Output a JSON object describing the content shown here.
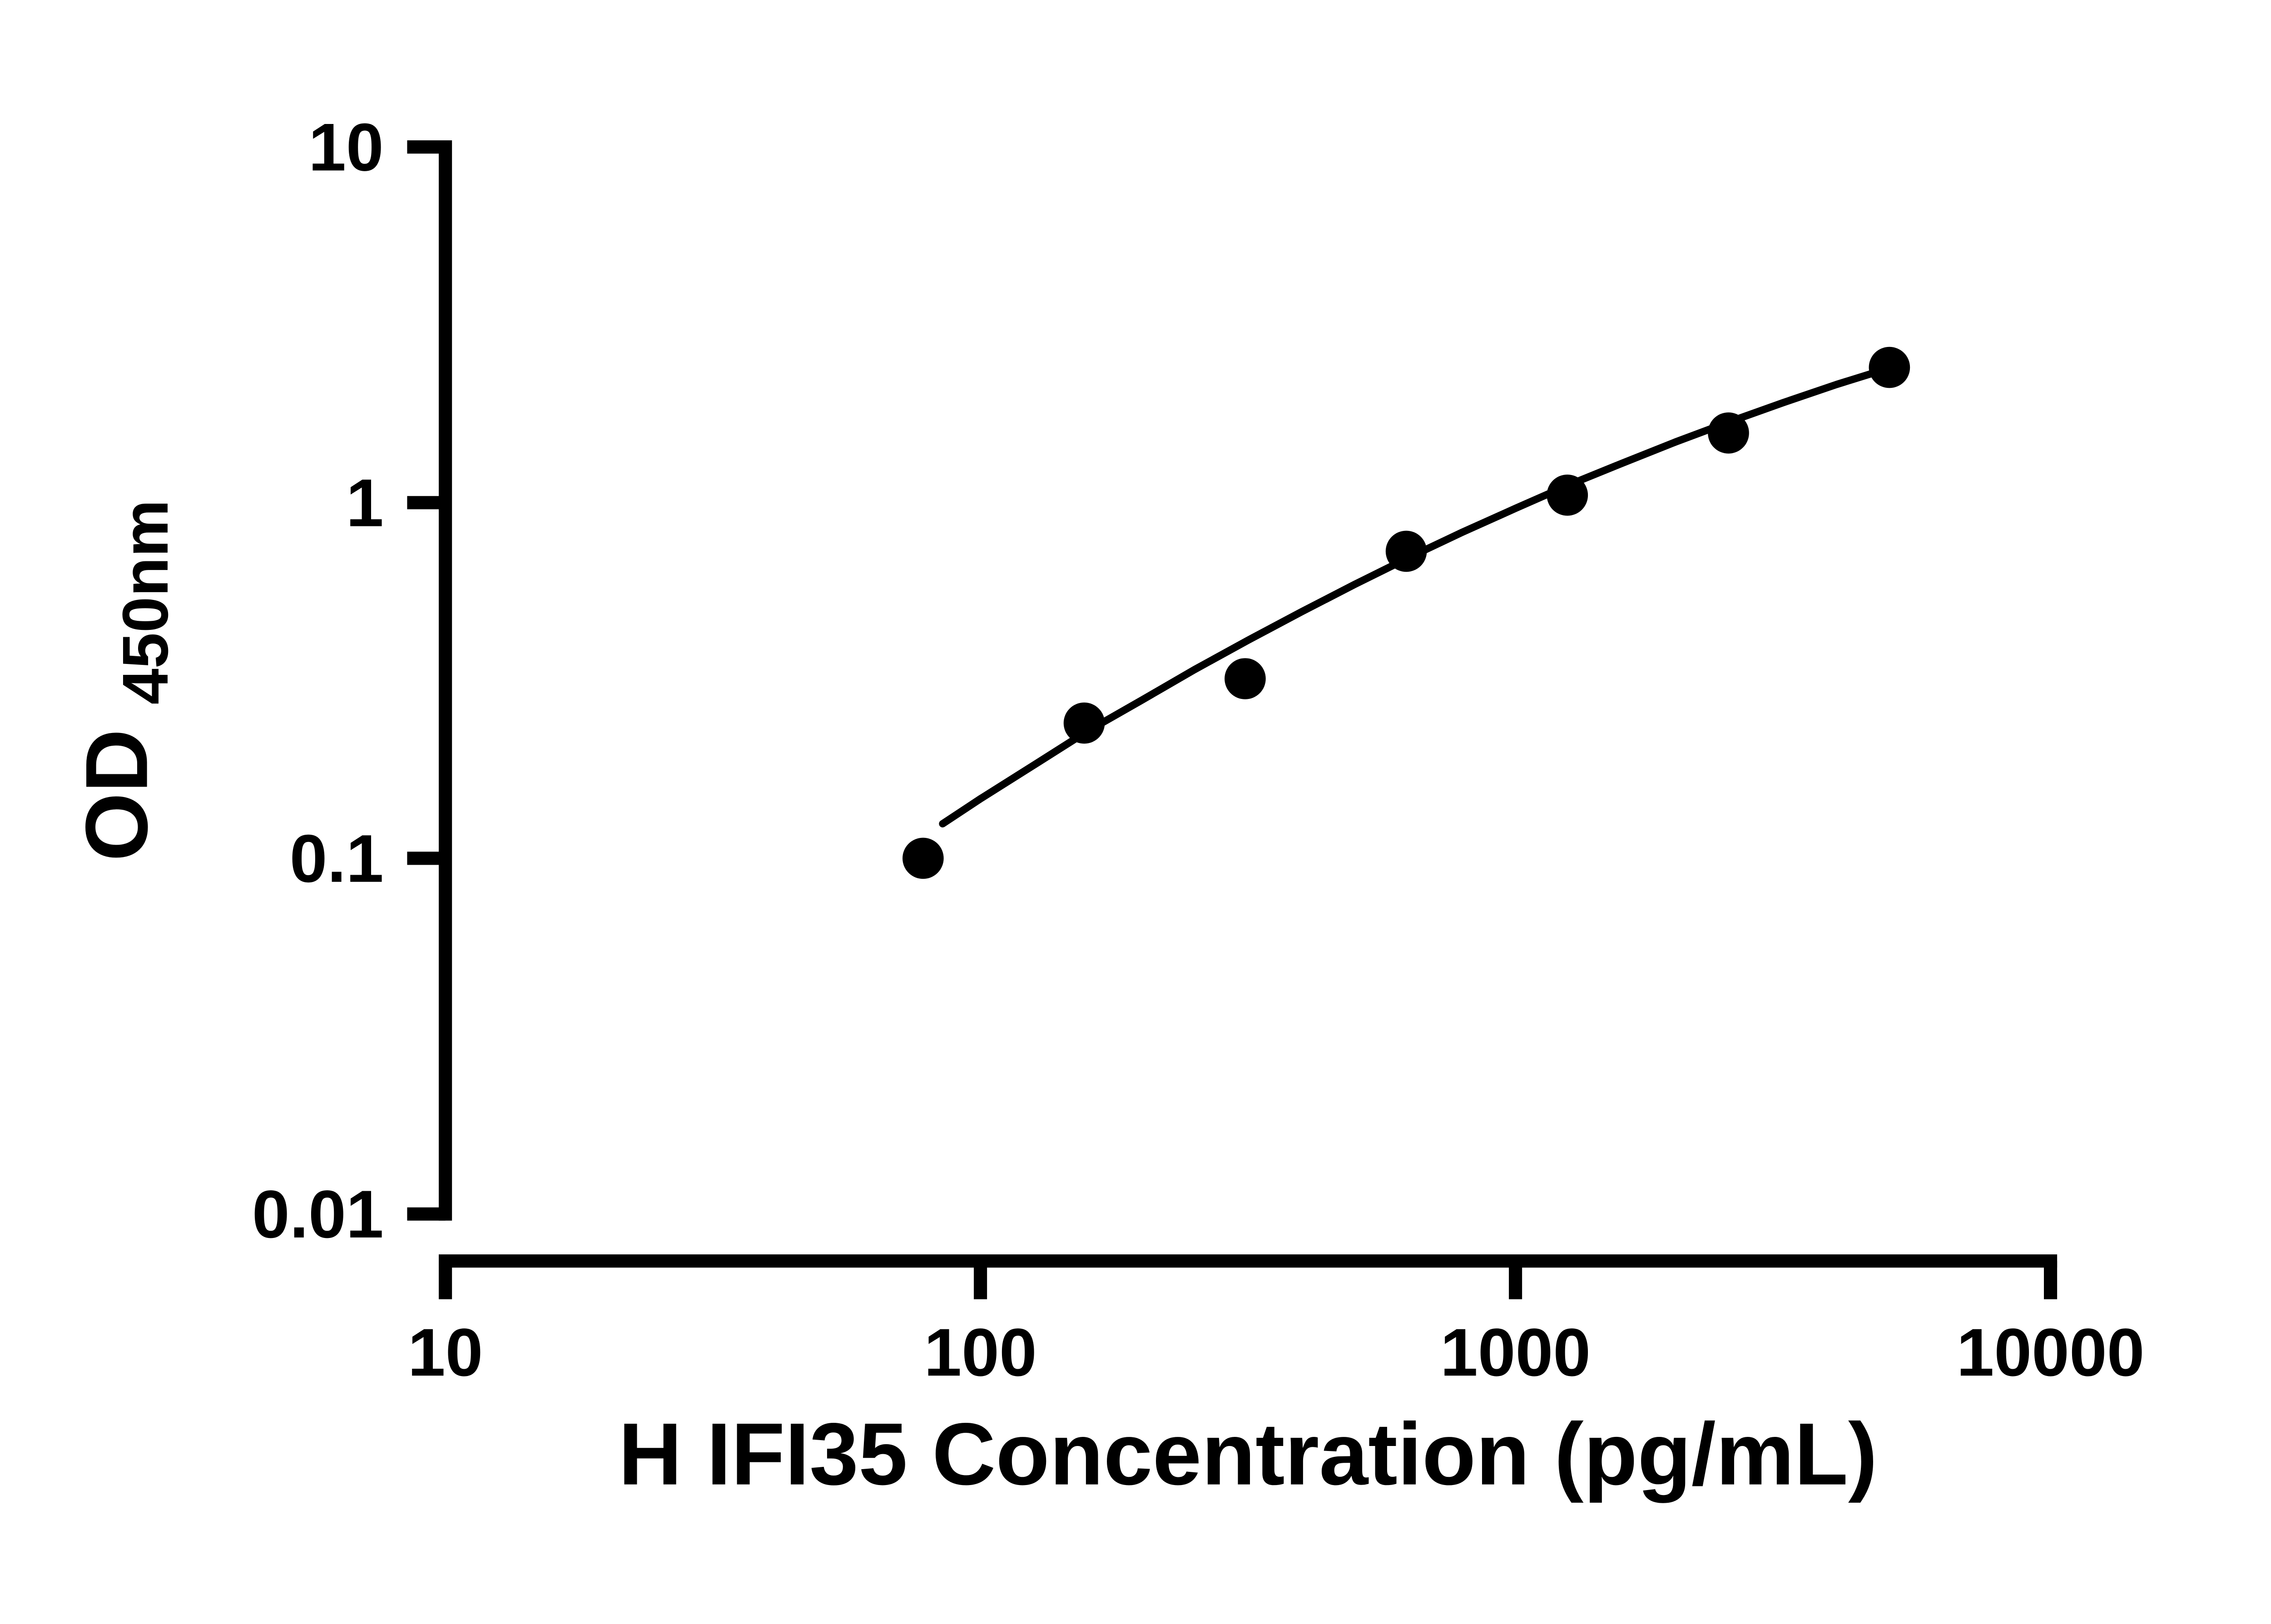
{
  "chart_data": {
    "type": "scatter",
    "title": "",
    "xlabel": "H IFI35 Concentration (pg/mL)",
    "ylabel_main": "OD",
    "ylabel_sub": "450nm",
    "x_scale": "log",
    "y_scale": "log",
    "xlim": [
      10,
      10000
    ],
    "ylim": [
      0.01,
      10
    ],
    "grid": false,
    "legend": "none",
    "x_ticks": [
      {
        "value": 10,
        "label": "10"
      },
      {
        "value": 100,
        "label": "100"
      },
      {
        "value": 1000,
        "label": "1000"
      },
      {
        "value": 10000,
        "label": "10000"
      }
    ],
    "y_ticks": [
      {
        "value": 10,
        "label": "10"
      },
      {
        "value": 1,
        "label": "1"
      },
      {
        "value": 0.1,
        "label": "0.1"
      },
      {
        "value": 0.01,
        "label": "0.01"
      }
    ],
    "series": [
      {
        "name": "standard-points",
        "marker": "circle",
        "color": "#000000",
        "x": [
          78.125,
          156.25,
          312.5,
          625,
          1250,
          2500,
          5000
        ],
        "y": [
          0.1,
          0.24,
          0.32,
          0.73,
          1.05,
          1.57,
          2.4
        ]
      }
    ],
    "fit_curve": {
      "name": "standard-curve-fit",
      "color": "#000000",
      "x": [
        85,
        100,
        126,
        158,
        200,
        251,
        316,
        398,
        501,
        631,
        794,
        1000,
        1259,
        1585,
        1995,
        2512,
        3162,
        3981,
        5012
      ],
      "y": [
        0.125,
        0.147,
        0.183,
        0.227,
        0.278,
        0.339,
        0.41,
        0.493,
        0.589,
        0.7,
        0.824,
        0.964,
        1.122,
        1.292,
        1.483,
        1.687,
        1.91,
        2.148,
        2.394
      ]
    }
  },
  "colors": {
    "background": "#ffffff",
    "axis": "#000000",
    "marker": "#000000",
    "curve": "#000000"
  }
}
